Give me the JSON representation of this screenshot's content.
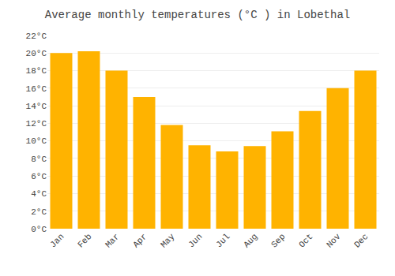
{
  "chart_data": {
    "type": "bar",
    "title": "Average monthly temperatures (°C ) in Lobethal",
    "categories": [
      "Jan",
      "Feb",
      "Mar",
      "Apr",
      "May",
      "Jun",
      "Jul",
      "Aug",
      "Sep",
      "Oct",
      "Nov",
      "Dec"
    ],
    "values": [
      20.0,
      20.2,
      18.0,
      15.0,
      11.8,
      9.5,
      8.8,
      9.4,
      11.1,
      13.4,
      16.0,
      18.0
    ],
    "color": "#FFB300",
    "ylim": [
      0,
      22
    ],
    "yticks": [
      {
        "value": 0,
        "label": "0°C"
      },
      {
        "value": 2,
        "label": "2°C"
      },
      {
        "value": 4,
        "label": "4°C"
      },
      {
        "value": 6,
        "label": "6°C"
      },
      {
        "value": 8,
        "label": "8°C"
      },
      {
        "value": 10,
        "label": "10°C"
      },
      {
        "value": 12,
        "label": "12°C"
      },
      {
        "value": 14,
        "label": "14°C"
      },
      {
        "value": 16,
        "label": "16°C"
      },
      {
        "value": 18,
        "label": "18°C"
      },
      {
        "value": 20,
        "label": "20°C"
      },
      {
        "value": 22,
        "label": "22°C"
      }
    ],
    "grid": true
  }
}
